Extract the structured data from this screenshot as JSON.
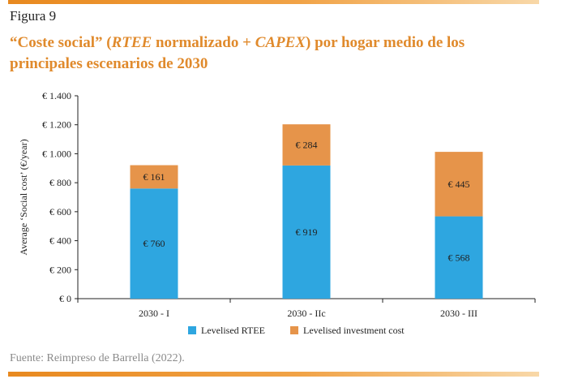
{
  "figure_label": "Figura 9",
  "title": {
    "p1": "“Coste social” (",
    "p2": "RTEE",
    "p3": " normalizado + ",
    "p4": "CAPEX",
    "p5": ") por hogar medio de los principales escenarios de 2030"
  },
  "source": "Fuente: Reimpreso de Barrella (2022).",
  "colors": {
    "rtee": "#2ea6e0",
    "investment": "#e6944a",
    "accent": "#e08a2c"
  },
  "chart_data": {
    "type": "bar",
    "stacked": true,
    "categories": [
      "2030 - I",
      "2030 - IIc",
      "2030 - III"
    ],
    "series": [
      {
        "name": "Levelised RTEE",
        "values": [
          760,
          919,
          568
        ],
        "labels": [
          "€ 760",
          "€ 919",
          "€ 568"
        ]
      },
      {
        "name": "Levelised investment cost",
        "values": [
          161,
          284,
          445
        ],
        "labels": [
          "€ 161",
          "€ 284",
          "€ 445"
        ]
      }
    ],
    "ylabel": "Average ‘Social cost’ (€/year)",
    "ylim": [
      0,
      1400
    ],
    "yticks": [
      0,
      200,
      400,
      600,
      800,
      1000,
      1200,
      1400
    ],
    "ytick_labels": [
      "€ 0",
      "€ 200",
      "€ 400",
      "€ 600",
      "€ 800",
      "€ 1.000",
      "€ 1.200",
      "€ 1.400"
    ],
    "legend_position": "bottom",
    "grid": false
  }
}
